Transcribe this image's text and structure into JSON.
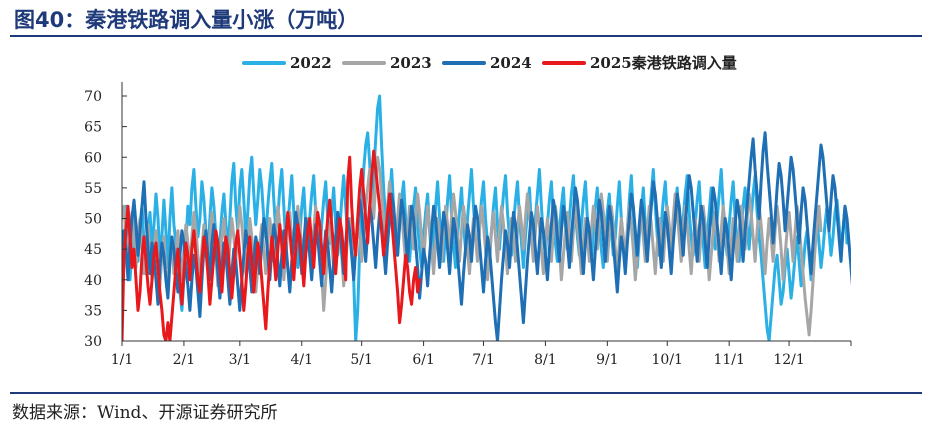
{
  "figure": {
    "title": "图40：秦港铁路调入量小涨（万吨）",
    "source": "数据来源：Wind、开源证券研究所"
  },
  "chart_data": {
    "type": "line",
    "x_ticks": [
      "1/1",
      "2/1",
      "3/1",
      "4/1",
      "5/1",
      "6/1",
      "7/1",
      "8/1",
      "9/1",
      "10/1",
      "11/1",
      "12/1"
    ],
    "x_tick_days": [
      1,
      32,
      60,
      91,
      121,
      152,
      182,
      213,
      244,
      274,
      305,
      335
    ],
    "xlim": [
      1,
      366
    ],
    "ylim": [
      30,
      70
    ],
    "y_ticks": [
      30,
      35,
      40,
      45,
      50,
      55,
      60,
      65,
      70
    ],
    "grid": false,
    "legend_position": "top",
    "series": [
      {
        "name": "2022",
        "color": "#2bb0e6",
        "stroke_width": 3,
        "x_start": 1,
        "values": [
          47,
          44,
          52,
          48,
          40,
          45,
          50,
          47,
          43,
          49,
          52,
          46,
          41,
          48,
          51,
          45,
          49,
          54,
          50,
          44,
          47,
          53,
          48,
          42,
          50,
          55,
          49,
          46,
          44,
          38,
          35,
          40,
          46,
          52,
          49,
          55,
          58,
          52,
          47,
          50,
          56,
          53,
          48,
          44,
          50,
          55,
          52,
          47,
          42,
          46,
          51,
          54,
          49,
          45,
          50,
          56,
          59,
          52,
          48,
          55,
          58,
          53,
          47,
          51,
          57,
          60,
          54,
          49,
          53,
          58,
          55,
          50,
          47,
          52,
          56,
          59,
          53,
          48,
          50,
          55,
          58,
          52,
          46,
          49,
          53,
          57,
          51,
          46,
          42,
          47,
          52,
          55,
          49,
          45,
          50,
          54,
          57,
          51,
          47,
          44,
          49,
          53,
          56,
          50,
          46,
          51,
          55,
          49,
          44,
          48,
          53,
          57,
          52,
          47,
          50,
          46,
          40,
          30,
          35,
          45,
          52,
          58,
          62,
          64,
          59,
          53,
          57,
          63,
          68,
          70,
          62,
          55,
          50,
          46,
          53,
          58,
          52,
          47,
          44,
          49,
          53,
          56,
          50,
          46,
          43,
          48,
          52,
          55,
          49,
          45,
          42,
          47,
          51,
          54,
          48,
          44,
          47,
          52,
          56,
          50,
          46,
          43,
          48,
          53,
          57,
          51,
          46,
          42,
          47,
          51,
          55,
          49,
          45,
          50,
          54,
          58,
          52,
          47,
          44,
          49,
          53,
          56,
          50,
          46,
          43,
          48,
          52,
          55,
          49,
          45,
          50,
          54,
          57,
          51,
          47,
          44,
          49,
          53,
          56,
          50,
          46,
          42,
          47,
          51,
          55,
          49,
          45,
          50,
          54,
          58,
          52,
          47,
          44,
          49,
          53,
          56,
          50,
          46,
          43,
          48,
          52,
          55,
          49,
          45,
          50,
          54,
          57,
          51,
          47,
          44,
          49,
          53,
          56,
          50,
          46,
          43,
          48,
          52,
          55,
          49,
          45,
          42,
          47,
          51,
          54,
          48,
          44,
          47,
          52,
          56,
          50,
          46,
          43,
          48,
          53,
          57,
          51,
          46,
          42,
          47,
          51,
          55,
          49,
          45,
          50,
          54,
          58,
          52,
          47,
          44,
          49,
          53,
          56,
          50,
          46,
          43,
          48,
          52,
          55,
          49,
          45,
          50,
          54,
          57,
          51,
          47,
          44,
          49,
          53,
          56,
          50,
          46,
          42,
          47,
          51,
          55,
          49,
          45,
          50,
          54,
          58,
          52,
          47,
          44,
          49,
          53,
          56,
          50,
          46,
          43,
          48,
          52,
          55,
          49,
          45,
          50,
          54,
          57,
          51,
          47,
          44,
          40,
          36,
          32,
          30,
          34,
          38,
          42,
          44,
          40,
          36,
          38,
          42,
          45,
          41,
          37,
          40,
          44,
          47,
          43,
          39,
          42,
          46,
          48,
          44,
          40,
          43,
          47,
          50,
          46,
          42,
          45,
          49,
          52,
          48,
          44,
          47,
          51,
          53,
          49,
          45,
          48,
          52,
          46
        ]
      },
      {
        "name": "2023",
        "color": "#a6a6a6",
        "stroke_width": 3,
        "x_start": 1,
        "values": [
          50,
          52,
          47,
          43,
          48,
          51,
          46,
          42,
          47,
          50,
          45,
          41,
          46,
          49,
          44,
          40,
          45,
          48,
          43,
          39,
          44,
          47,
          42,
          38,
          43,
          46,
          41,
          45,
          48,
          44,
          40,
          45,
          49,
          46,
          42,
          47,
          51,
          48,
          44,
          40,
          45,
          49,
          46,
          42,
          47,
          51,
          48,
          44,
          39,
          43,
          47,
          50,
          45,
          41,
          46,
          50,
          47,
          43,
          48,
          52,
          49,
          45,
          41,
          46,
          50,
          47,
          43,
          38,
          42,
          46,
          49,
          45,
          41,
          46,
          50,
          47,
          43,
          48,
          52,
          49,
          45,
          40,
          44,
          48,
          51,
          47,
          43,
          48,
          52,
          49,
          45,
          41,
          46,
          50,
          47,
          43,
          48,
          52,
          49,
          45,
          41,
          35,
          40,
          45,
          49,
          46,
          42,
          47,
          51,
          48,
          44,
          39,
          43,
          47,
          50,
          45,
          41,
          46,
          50,
          47,
          43,
          48,
          52,
          55,
          58,
          54,
          50,
          56,
          60,
          58,
          54,
          50,
          46,
          52,
          56,
          53,
          49,
          45,
          50,
          54,
          51,
          47,
          43,
          48,
          52,
          49,
          45,
          50,
          54,
          51,
          47,
          43,
          48,
          52,
          49,
          45,
          41,
          46,
          50,
          47,
          43,
          48,
          52,
          49,
          45,
          50,
          54,
          51,
          47,
          43,
          48,
          52,
          49,
          45,
          41,
          46,
          50,
          47,
          43,
          48,
          52,
          49,
          45,
          40,
          44,
          48,
          51,
          47,
          43,
          48,
          52,
          49,
          45,
          41,
          46,
          50,
          47,
          43,
          48,
          52,
          49,
          45,
          50,
          54,
          51,
          47,
          43,
          48,
          52,
          49,
          45,
          41,
          46,
          50,
          47,
          43,
          48,
          52,
          49,
          45,
          40,
          44,
          48,
          51,
          47,
          43,
          48,
          52,
          49,
          45,
          41,
          46,
          50,
          47,
          43,
          48,
          52,
          49,
          45,
          50,
          54,
          51,
          47,
          43,
          48,
          52,
          49,
          45,
          41,
          46,
          50,
          47,
          43,
          48,
          52,
          49,
          45,
          40,
          44,
          48,
          51,
          47,
          43,
          48,
          52,
          49,
          45,
          41,
          46,
          50,
          47,
          43,
          48,
          52,
          49,
          45,
          50,
          54,
          51,
          47,
          43,
          48,
          52,
          49,
          45,
          41,
          46,
          50,
          47,
          43,
          48,
          52,
          49,
          45,
          40,
          44,
          48,
          51,
          47,
          43,
          48,
          52,
          49,
          45,
          41,
          46,
          50,
          47,
          43,
          48,
          52,
          49,
          45,
          50,
          54,
          51,
          47,
          43,
          48,
          52,
          49,
          45,
          41,
          46,
          50,
          47,
          43,
          48,
          52,
          49,
          45,
          40,
          44,
          48,
          51,
          47,
          43,
          48,
          52,
          49,
          45,
          41,
          37,
          34,
          31,
          35,
          40,
          45,
          49,
          52,
          48
        ]
      },
      {
        "name": "2024",
        "color": "#1f6fb4",
        "stroke_width": 3,
        "x_start": 1,
        "values": [
          44,
          48,
          45,
          40,
          46,
          50,
          53,
          49,
          44,
          48,
          52,
          56,
          50,
          45,
          41,
          46,
          44,
          40,
          36,
          42,
          46,
          44,
          40,
          37,
          43,
          47,
          45,
          41,
          38,
          44,
          48,
          46,
          42,
          39,
          35,
          40,
          44,
          42,
          38,
          34,
          40,
          45,
          48,
          44,
          40,
          46,
          49,
          45,
          41,
          37,
          42,
          46,
          44,
          40,
          36,
          41,
          45,
          43,
          39,
          35,
          40,
          44,
          48,
          46,
          42,
          38,
          43,
          47,
          45,
          41,
          46,
          50,
          48,
          44,
          40,
          45,
          49,
          47,
          43,
          39,
          44,
          48,
          46,
          42,
          38,
          43,
          47,
          51,
          49,
          45,
          41,
          46,
          50,
          48,
          44,
          40,
          45,
          49,
          47,
          43,
          39,
          44,
          48,
          46,
          42,
          38,
          43,
          47,
          51,
          49,
          45,
          41,
          46,
          50,
          48,
          44,
          40,
          45,
          49,
          53,
          51,
          47,
          43,
          48,
          52,
          50,
          46,
          42,
          47,
          51,
          49,
          45,
          41,
          46,
          50,
          54,
          52,
          48,
          44,
          49,
          53,
          51,
          47,
          43,
          48,
          52,
          50,
          46,
          42,
          37,
          41,
          45,
          43,
          39,
          44,
          48,
          52,
          50,
          46,
          42,
          47,
          51,
          49,
          45,
          41,
          46,
          50,
          48,
          44,
          40,
          36,
          41,
          45,
          49,
          47,
          43,
          48,
          52,
          50,
          46,
          42,
          38,
          43,
          47,
          45,
          41,
          37,
          33,
          30,
          35,
          40,
          44,
          48,
          46,
          42,
          47,
          51,
          49,
          45,
          41,
          37,
          33,
          38,
          43,
          47,
          51,
          49,
          45,
          41,
          46,
          50,
          48,
          44,
          40,
          45,
          49,
          53,
          51,
          47,
          43,
          48,
          52,
          50,
          46,
          42,
          47,
          51,
          55,
          53,
          49,
          45,
          41,
          46,
          50,
          48,
          44,
          40,
          45,
          49,
          53,
          51,
          47,
          43,
          48,
          52,
          50,
          46,
          42,
          38,
          43,
          47,
          45,
          41,
          46,
          50,
          54,
          52,
          48,
          44,
          49,
          53,
          51,
          47,
          43,
          48,
          52,
          56,
          54,
          50,
          46,
          42,
          47,
          51,
          49,
          45,
          41,
          46,
          50,
          54,
          52,
          48,
          44,
          49,
          53,
          57,
          55,
          51,
          47,
          43,
          48,
          52,
          50,
          46,
          42,
          47,
          51,
          55,
          53,
          49,
          45,
          41,
          46,
          50,
          48,
          44,
          40,
          45,
          49,
          53,
          51,
          47,
          43,
          48,
          52,
          56,
          60,
          63,
          58,
          54,
          50,
          56,
          61,
          64,
          59,
          55,
          51,
          46,
          50,
          55,
          59,
          57,
          53,
          48,
          52,
          56,
          60,
          58,
          54,
          50,
          46,
          51,
          55,
          53,
          49,
          45,
          41,
          46,
          50,
          54,
          58,
          62,
          60,
          56,
          52,
          48,
          53,
          57,
          55,
          51,
          47,
          43,
          48,
          52,
          50,
          46,
          42,
          38,
          43,
          47,
          45,
          41,
          44
        ]
      },
      {
        "name": "2025秦港铁路调入量",
        "color": "#e8191c",
        "stroke_width": 3,
        "x_start": 1,
        "values": [
          30,
          44,
          48,
          52,
          47,
          42,
          45,
          40,
          35,
          38,
          44,
          47,
          43,
          39,
          36,
          40,
          44,
          46,
          42,
          38,
          35,
          31,
          30,
          33,
          30,
          34,
          38,
          42,
          45,
          40,
          36,
          41,
          46,
          44,
          40,
          45,
          48,
          44,
          40,
          38,
          43,
          47,
          45,
          41,
          36,
          40,
          44,
          48,
          46,
          42,
          38,
          43,
          47,
          45,
          41,
          37,
          41,
          46,
          48,
          44,
          40,
          35,
          39,
          44,
          47,
          43,
          38,
          42,
          46,
          44,
          40,
          36,
          32,
          38,
          43,
          47,
          44,
          40,
          45,
          49,
          46,
          42,
          47,
          51,
          48,
          44,
          40,
          45,
          49,
          47,
          43,
          39,
          44,
          48,
          50,
          46,
          42,
          47,
          51,
          49,
          45,
          41,
          46,
          50,
          53,
          49,
          45,
          41,
          46,
          50,
          48,
          44,
          40,
          56,
          60,
          52,
          47,
          44,
          50,
          55,
          58,
          54,
          50,
          46,
          52,
          57,
          61,
          58,
          55,
          52,
          48,
          44,
          47,
          51,
          54,
          50,
          46,
          42,
          38,
          33,
          36,
          40,
          44,
          42,
          38,
          36,
          40,
          42,
          38,
          40
        ]
      }
    ]
  }
}
